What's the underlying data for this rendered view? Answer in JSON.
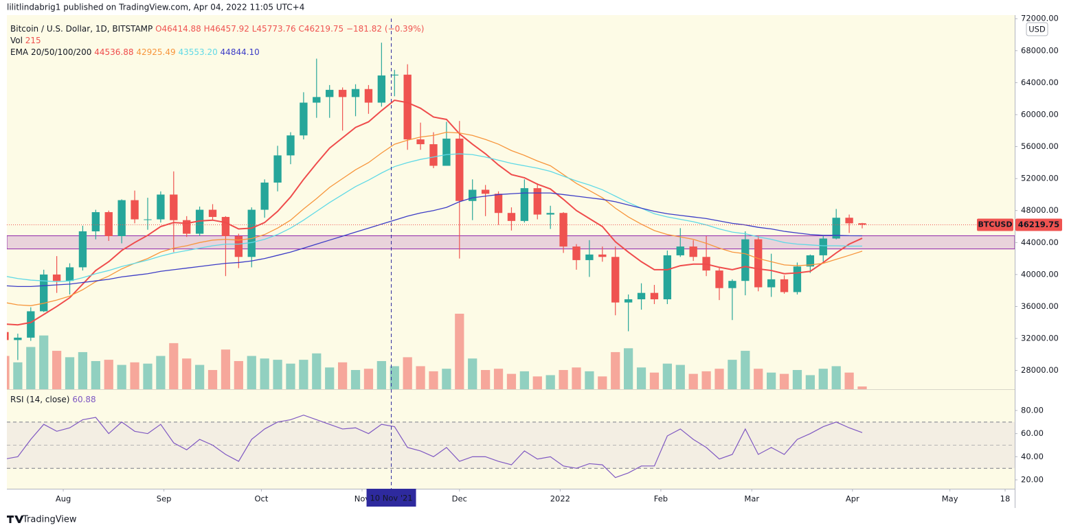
{
  "header": {
    "publisher": "lilitlindabrig1 published on TradingView.com, Apr 04, 2022 11:05 UTC+4"
  },
  "footer": {
    "brand": "TradingView"
  },
  "chart_data": {
    "type": "candlestick",
    "symbol_title": "Bitcoin / U.S. Dollar, 1D, BITSTAMP",
    "ohlc_legend": [
      "O46414.88",
      "H46457.92",
      "L45773.76",
      "C46219.75",
      "−181.82 (−0.39%)"
    ],
    "volume_label": "Vol",
    "volume_last": "215",
    "ema_label": "EMA 20/50/100/200",
    "currency": "USD",
    "up_color": "#26a69a",
    "down_color": "#ef5350",
    "categories": [
      null,
      null,
      null,
      null,
      null,
      null,
      null,
      null,
      null,
      null,
      null,
      null,
      null,
      null,
      null,
      null,
      null,
      null,
      null,
      null,
      null,
      null,
      null,
      null,
      null,
      null,
      null,
      null,
      null,
      null,
      null,
      null,
      null,
      null,
      null,
      null,
      null,
      null,
      null,
      null,
      null,
      null,
      null,
      null,
      null,
      null,
      null,
      null,
      null,
      null,
      null,
      null,
      null,
      null,
      null,
      null,
      null,
      null,
      null,
      null,
      null,
      null,
      null,
      null,
      null,
      null,
      null
    ],
    "open": [
      32800,
      31800,
      32100,
      35400,
      40000,
      39200,
      40900,
      45400,
      47800,
      44800,
      49300,
      46900,
      46900,
      50000,
      46800,
      45100,
      48100,
      47200,
      44800,
      42200,
      48100,
      51500,
      54900,
      57400,
      61500,
      62200,
      63100,
      62200,
      63200,
      61500,
      64900,
      65000,
      56900,
      56300,
      53600,
      57000,
      49200,
      50600,
      50100,
      47700,
      46700,
      50800,
      47500,
      47700,
      43500,
      41800,
      42500,
      42200,
      36500,
      36900,
      37700,
      36900,
      42400,
      43500,
      42200,
      40500,
      38300,
      39200,
      44400,
      38400,
      39400,
      37800,
      41000,
      42400,
      44500,
      47100,
      46414.88
    ],
    "high": [
      33300,
      32600,
      35900,
      40600,
      42300,
      41400,
      46100,
      48100,
      48000,
      49400,
      50500,
      49600,
      50400,
      52900,
      47300,
      48500,
      48800,
      47300,
      45100,
      48400,
      51900,
      56100,
      57800,
      62800,
      67000,
      63700,
      63400,
      63800,
      63700,
      69000,
      65600,
      66300,
      59000,
      57800,
      59100,
      59200,
      51900,
      51200,
      50400,
      48400,
      51900,
      51400,
      48600,
      47800,
      43800,
      44300,
      43500,
      43500,
      37500,
      38900,
      38700,
      43000,
      45800,
      44300,
      44800,
      40800,
      39400,
      45400,
      44900,
      42600,
      39900,
      41500,
      42500,
      44800,
      48200,
      47500,
      46457.92
    ],
    "low": [
      31100,
      29300,
      31700,
      35300,
      37700,
      37500,
      40500,
      44400,
      44200,
      43900,
      46400,
      45600,
      46500,
      42800,
      44700,
      44800,
      46800,
      39800,
      40800,
      40900,
      47100,
      50400,
      53800,
      56900,
      59600,
      59600,
      58000,
      59800,
      60100,
      61000,
      62300,
      55600,
      55600,
      53300,
      53600,
      42000,
      46800,
      47300,
      46200,
      45500,
      46500,
      46900,
      45700,
      42700,
      40600,
      39700,
      41600,
      34900,
      32900,
      35600,
      36300,
      36300,
      42200,
      41700,
      39800,
      36800,
      34300,
      37400,
      37900,
      37200,
      37600,
      37500,
      40200,
      41600,
      44400,
      45200,
      45773.76
    ],
    "close": [
      31800,
      32100,
      35400,
      40000,
      39200,
      40900,
      45400,
      47800,
      44800,
      49300,
      46900,
      46900,
      50000,
      46800,
      45100,
      48100,
      47200,
      44800,
      42200,
      48100,
      51500,
      54900,
      57400,
      61500,
      62200,
      63100,
      62200,
      63200,
      61500,
      64900,
      65000,
      56900,
      56300,
      53600,
      57000,
      49200,
      50600,
      50100,
      47700,
      46700,
      50800,
      47500,
      47700,
      43500,
      41800,
      42500,
      42200,
      36500,
      36900,
      37700,
      36900,
      42400,
      43500,
      42200,
      40500,
      38300,
      39200,
      44400,
      38400,
      39400,
      37800,
      41000,
      42400,
      44500,
      47100,
      46400,
      46219.75
    ],
    "volume": [
      2600,
      2100,
      3300,
      4200,
      3000,
      2500,
      2900,
      2200,
      2300,
      1900,
      2100,
      2000,
      2600,
      3600,
      2400,
      1900,
      1500,
      3100,
      2200,
      2600,
      2400,
      2300,
      2000,
      2300,
      2800,
      1700,
      2100,
      1500,
      1600,
      2200,
      1800,
      2500,
      1800,
      1400,
      1600,
      5900,
      2400,
      1500,
      1600,
      1200,
      1400,
      1000,
      1100,
      1500,
      1700,
      1400,
      1000,
      2900,
      3200,
      1700,
      1300,
      2000,
      1900,
      1200,
      1400,
      1600,
      2300,
      3000,
      1600,
      1300,
      1200,
      1500,
      1100,
      1600,
      1800,
      1300,
      215
    ],
    "emas": [
      {
        "color": "#ef4b4b",
        "legend_value": "44536.88",
        "values": [
          33800,
          33700,
          34000,
          35000,
          36000,
          37100,
          38800,
          40500,
          41600,
          43000,
          44000,
          44900,
          46000,
          46500,
          46400,
          46700,
          46800,
          46500,
          45700,
          45800,
          46500,
          47900,
          49700,
          51900,
          53900,
          55800,
          57100,
          58400,
          59100,
          60500,
          61800,
          61500,
          60800,
          59700,
          59400,
          57600,
          56300,
          55100,
          53700,
          52500,
          52100,
          51300,
          50700,
          49400,
          48000,
          47000,
          46000,
          44100,
          42800,
          41600,
          40600,
          40600,
          41100,
          41300,
          41300,
          40900,
          40600,
          41000,
          40700,
          40500,
          40100,
          40200,
          40400,
          41500,
          42700,
          43800,
          44536.88
        ]
      },
      {
        "color": "#f7953b",
        "legend_value": "42925.49",
        "values": [
          36500,
          36200,
          36100,
          36400,
          36800,
          37300,
          38100,
          39100,
          39800,
          40700,
          41400,
          42000,
          42800,
          43300,
          43600,
          44000,
          44300,
          44400,
          44300,
          44500,
          45000,
          45800,
          46800,
          48200,
          49500,
          50900,
          52000,
          53100,
          54000,
          55200,
          56300,
          56800,
          57200,
          57400,
          57800,
          57700,
          57400,
          56900,
          56300,
          55500,
          54900,
          54200,
          53600,
          52500,
          51400,
          50500,
          49600,
          48300,
          47200,
          46300,
          45500,
          45000,
          44700,
          44400,
          43900,
          43300,
          42800,
          42600,
          42000,
          41600,
          41200,
          41100,
          41200,
          41400,
          41900,
          42400,
          42925.49
        ]
      },
      {
        "color": "#5fd9e6",
        "legend_value": "43553.20",
        "values": [
          39800,
          39500,
          39300,
          39200,
          39100,
          39200,
          39600,
          40100,
          40500,
          41000,
          41400,
          41800,
          42300,
          42700,
          43000,
          43300,
          43600,
          43800,
          43800,
          44000,
          44400,
          45000,
          45800,
          46800,
          47900,
          49000,
          50000,
          51000,
          51800,
          52700,
          53500,
          54000,
          54400,
          54700,
          55000,
          55100,
          55000,
          54700,
          54300,
          53900,
          53600,
          53300,
          52900,
          52300,
          51700,
          51200,
          50600,
          49800,
          49000,
          48300,
          47600,
          47200,
          46900,
          46600,
          46200,
          45700,
          45300,
          45100,
          44700,
          44400,
          44000,
          43800,
          43700,
          43600,
          43600,
          43550,
          43553.2
        ]
      },
      {
        "color": "#3b3bc6",
        "legend_value": "44844.10",
        "values": [
          38600,
          38500,
          38500,
          38600,
          38700,
          38800,
          39000,
          39200,
          39400,
          39700,
          39900,
          40100,
          40400,
          40600,
          40800,
          41000,
          41200,
          41400,
          41500,
          41700,
          42000,
          42400,
          42800,
          43300,
          43800,
          44300,
          44800,
          45300,
          45800,
          46300,
          46800,
          47300,
          47700,
          48000,
          48400,
          49100,
          49600,
          49800,
          50000,
          50100,
          50200,
          50200,
          50200,
          50000,
          49800,
          49600,
          49400,
          49100,
          48700,
          48300,
          47900,
          47600,
          47400,
          47200,
          47000,
          46700,
          46400,
          46200,
          45900,
          45700,
          45400,
          45200,
          45000,
          44900,
          44900,
          44850,
          44844.1
        ]
      }
    ],
    "zone": [
      43200,
      44850
    ],
    "zone_color": "#8e24aa",
    "price_line": {
      "value": 46219.75,
      "symbol": "BTCUSD",
      "label": "46219.75"
    },
    "crosshair": {
      "x": 29.75,
      "label": "10 Nov '21",
      "color": "#2e2a9e"
    },
    "xlim": [
      0.16,
      77.74
    ],
    "xticks": [
      {
        "value": 4.5,
        "label": "Aug"
      },
      {
        "value": 12.25,
        "label": "Sep"
      },
      {
        "value": 19.75,
        "label": "Oct"
      },
      {
        "value": 27.5,
        "label": "Nov"
      },
      {
        "value": 35,
        "label": "Dec"
      },
      {
        "value": 42.75,
        "label": "2022"
      },
      {
        "value": 50.5,
        "label": "Feb"
      },
      {
        "value": 57.5,
        "label": "Mar"
      },
      {
        "value": 65.25,
        "label": "Apr"
      },
      {
        "value": 72.75,
        "label": "May"
      },
      {
        "value": 77,
        "label": "18"
      }
    ],
    "ylim": [
      25650,
      72450
    ],
    "yticks": [
      {
        "value": 28000,
        "label": "28000.00"
      },
      {
        "value": 32000,
        "label": "32000.00"
      },
      {
        "value": 36000,
        "label": "36000.00"
      },
      {
        "value": 40000,
        "label": "40000.00"
      },
      {
        "value": 44000,
        "label": "44000.00"
      },
      {
        "value": 48000,
        "label": "48000.00"
      },
      {
        "value": 52000,
        "label": "52000.00"
      },
      {
        "value": 56000,
        "label": "56000.00"
      },
      {
        "value": 60000,
        "label": "60000.00"
      },
      {
        "value": 64000,
        "label": "64000.00"
      },
      {
        "value": 68000,
        "label": "68000.00"
      },
      {
        "value": 72000,
        "label": "72000.00"
      }
    ],
    "rsi": {
      "label": "RSI (14, close)",
      "last": "60.88",
      "color": "#7e57c2",
      "values": [
        38,
        40,
        55,
        68,
        62,
        65,
        72,
        74,
        60,
        70,
        62,
        60,
        68,
        52,
        46,
        55,
        50,
        42,
        36,
        55,
        64,
        70,
        72,
        76,
        72,
        68,
        64,
        65,
        60,
        68,
        66,
        48,
        45,
        40,
        48,
        36,
        40,
        40,
        36,
        33,
        45,
        38,
        40,
        32,
        30,
        34,
        33,
        22,
        26,
        32,
        32,
        58,
        64,
        55,
        48,
        38,
        42,
        64,
        42,
        48,
        42,
        55,
        60,
        66,
        70,
        65,
        60.88
      ],
      "ylim": [
        12.3,
        97.8
      ],
      "yticks": [
        {
          "value": 20,
          "label": "20.00"
        },
        {
          "value": 40,
          "label": "40.00"
        },
        {
          "value": 60,
          "label": "60.00"
        },
        {
          "value": 80,
          "label": "80.00"
        }
      ],
      "band": [
        30,
        70
      ],
      "midline": 50
    }
  }
}
